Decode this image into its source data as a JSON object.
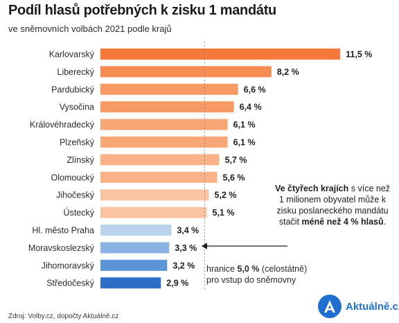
{
  "header": {
    "title": "Podíl hlasů potřebných k zisku 1 mandátu",
    "subtitle": "ve sněmovních volbách 2021 podle krajů"
  },
  "chart_data": {
    "type": "bar",
    "orientation": "horizontal",
    "title": "Podíl hlasů potřebných k zisku 1 mandátu",
    "subtitle": "ve sněmovních volbách 2021 podle krajů",
    "categories": [
      "Karlovarský",
      "Liberecký",
      "Pardubický",
      "Vysočina",
      "Královéhradecký",
      "Plzeňský",
      "Zlínský",
      "Olomoucký",
      "Jihočeský",
      "Ústecký",
      "Hl. město Praha",
      "Moravskoslezský",
      "Jihomoravský",
      "Středočeský"
    ],
    "values": [
      11.5,
      8.2,
      6.6,
      6.4,
      6.1,
      6.1,
      5.7,
      5.6,
      5.2,
      5.1,
      3.4,
      3.3,
      3.2,
      2.9
    ],
    "value_labels": [
      "11,5  %",
      "8,2  %",
      "6,6  %",
      "6,4  %",
      "6,1  %",
      "6,1  %",
      "5,7  %",
      "5,6  %",
      "5,2  %",
      "5,1  %",
      "3,4  %",
      "3,3  %",
      "3,2  %",
      "2,9  %"
    ],
    "colors": [
      "#f5793a",
      "#f68c51",
      "#f79a63",
      "#f79a63",
      "#f8a676",
      "#f8a676",
      "#f9b288",
      "#f9b288",
      "#fac4a3",
      "#fac4a3",
      "#b9d2ee",
      "#8ab3e3",
      "#5b95d8",
      "#2d6fc4"
    ],
    "reference_line": {
      "value": 5.0
    },
    "xlim": [
      0,
      12
    ],
    "grid": false
  },
  "annotation": {
    "bold_1": "Ve čtyřech krajích",
    "text_1": " s více než 1 milionem obyvatel může k zisku poslaneckého mandátu stačit ",
    "bold_2": "méně než 4 % hlasů",
    "text_2": "."
  },
  "threshold_note": {
    "prefix": "hranice ",
    "bold": "5,0 %",
    "suffix": " (celostátně)",
    "line2": "pro vstup do sněmovny"
  },
  "footer": {
    "source": "Zdroj: Volby.cz, dopočty Aktuálně.cz",
    "logo_text": "Aktuálně.cz",
    "brand_color": "#1f6fd0"
  }
}
